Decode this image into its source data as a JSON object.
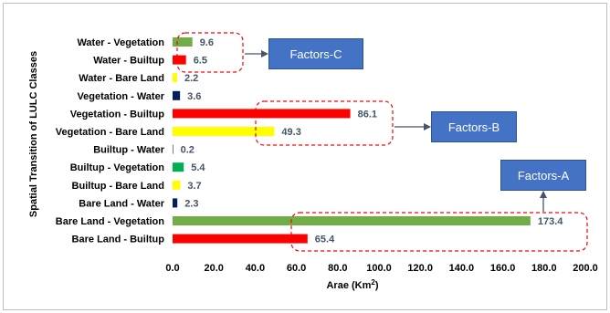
{
  "chart_data": {
    "type": "bar",
    "orientation": "horizontal",
    "categories": [
      "Water - Vegetation",
      "Water - Builtup",
      "Water - Bare Land",
      "Vegetation - Water",
      "Vegetation - Builtup",
      "Vegetation - Bare Land",
      "Builtup - Water",
      "Builtup - Vegetation",
      "Builtup - Bare Land",
      "Bare Land - Water",
      "Bare Land - Vegetation",
      "Bare Land - Builtup"
    ],
    "values": [
      9.6,
      6.5,
      2.2,
      3.6,
      86.1,
      49.3,
      0.2,
      5.4,
      3.7,
      2.3,
      173.4,
      65.4
    ],
    "value_labels": [
      "9.6",
      "6.5",
      "2.2",
      "3.6",
      "86.1",
      "49.3",
      "0.2",
      "5.4",
      "3.7",
      "2.3",
      "173.4",
      "65.4"
    ],
    "bar_colors": [
      "#70ad47",
      "#ff0000",
      "#ffff00",
      "#002060",
      "#ff0000",
      "#ffff00",
      "#002060",
      "#00b050",
      "#ffff00",
      "#002060",
      "#70ad47",
      "#ff0000"
    ],
    "xlabel": "Arae (Km",
    "xlabel_sup": "2",
    "xlabel_end": ")",
    "ylabel": "Spatial Transition of LULC Classes",
    "xlim": [
      0,
      200
    ],
    "xticks": [
      0,
      20,
      40,
      60,
      80,
      100,
      120,
      140,
      160,
      180,
      200
    ],
    "xtick_labels": [
      "0.0",
      "20.0",
      "40.0",
      "60.0",
      "80.0",
      "100.0",
      "120.0",
      "140.0",
      "160.0",
      "180.0",
      "200.0"
    ],
    "grid": false,
    "legend": "none",
    "annotations": [
      {
        "label": "Factors-C",
        "group": [
          0,
          1
        ]
      },
      {
        "label": "Factors-B",
        "group": [
          4,
          5
        ]
      },
      {
        "label": "Factors-A",
        "group": [
          10,
          11
        ]
      }
    ]
  },
  "colors": {
    "label_text": "#44546a",
    "annotation_box": "#4472c4",
    "dashed_outline": "#ff0000",
    "arrow": "#44546a"
  }
}
